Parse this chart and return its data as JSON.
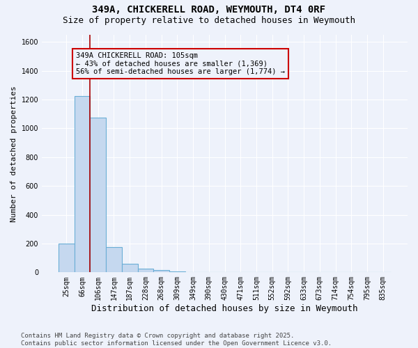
{
  "title": "349A, CHICKERELL ROAD, WEYMOUTH, DT4 0RF",
  "subtitle": "Size of property relative to detached houses in Weymouth",
  "xlabel": "Distribution of detached houses by size in Weymouth",
  "ylabel": "Number of detached properties",
  "categories": [
    "25sqm",
    "66sqm",
    "106sqm",
    "147sqm",
    "187sqm",
    "228sqm",
    "268sqm",
    "309sqm",
    "349sqm",
    "390sqm",
    "430sqm",
    "471sqm",
    "511sqm",
    "552sqm",
    "592sqm",
    "633sqm",
    "673sqm",
    "714sqm",
    "754sqm",
    "795sqm",
    "835sqm"
  ],
  "values": [
    200,
    1225,
    1075,
    175,
    60,
    25,
    15,
    5,
    2,
    1,
    0,
    0,
    0,
    0,
    0,
    0,
    0,
    0,
    0,
    0,
    0
  ],
  "bar_color": "#c5d8ef",
  "bar_edgecolor": "#6aaed6",
  "bar_linewidth": 0.8,
  "vline_x": 1.5,
  "vline_color": "#aa0000",
  "vline_linewidth": 1.2,
  "annotation_text": "349A CHICKERELL ROAD: 105sqm\n← 43% of detached houses are smaller (1,369)\n56% of semi-detached houses are larger (1,774) →",
  "annotation_edgecolor": "#cc0000",
  "ylim": [
    0,
    1650
  ],
  "yticks": [
    0,
    200,
    400,
    600,
    800,
    1000,
    1200,
    1400,
    1600
  ],
  "background_color": "#eef2fb",
  "grid_color": "#ffffff",
  "footer_text": "Contains HM Land Registry data © Crown copyright and database right 2025.\nContains public sector information licensed under the Open Government Licence v3.0.",
  "title_fontsize": 10,
  "subtitle_fontsize": 9,
  "xlabel_fontsize": 9,
  "ylabel_fontsize": 8,
  "tick_fontsize": 7,
  "annotation_fontsize": 7.5,
  "footer_fontsize": 6.5
}
